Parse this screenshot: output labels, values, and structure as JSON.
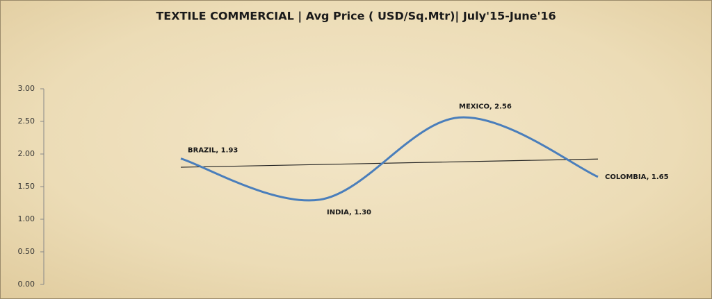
{
  "chart_data": {
    "type": "line",
    "title": "TEXTILE COMMERCIAL  | Avg Price ( USD/Sq.Mtr)| July'15-June'16",
    "categories": [
      "BRAZIL",
      "INDIA",
      "MEXICO",
      "COLOMBIA"
    ],
    "values": [
      1.93,
      1.3,
      2.56,
      1.65
    ],
    "value_labels": [
      "BRAZIL, 1.93",
      "INDIA, 1.30",
      "MEXICO, 2.56",
      "COLOMBIA, 1.65"
    ],
    "color": "#4a7ebb",
    "smooth": true,
    "trendline": true,
    "trendline_color": "#222222",
    "ylim": [
      0,
      3
    ],
    "yticks": [
      {
        "value": 0,
        "label": "0.00"
      },
      {
        "value": 0.5,
        "label": "0.50"
      },
      {
        "value": 1,
        "label": "1.00"
      },
      {
        "value": 1.5,
        "label": "1.50"
      },
      {
        "value": 2,
        "label": "2.00"
      },
      {
        "value": 2.5,
        "label": "2.50"
      },
      {
        "value": 3,
        "label": "3.00"
      }
    ],
    "grid": false
  }
}
